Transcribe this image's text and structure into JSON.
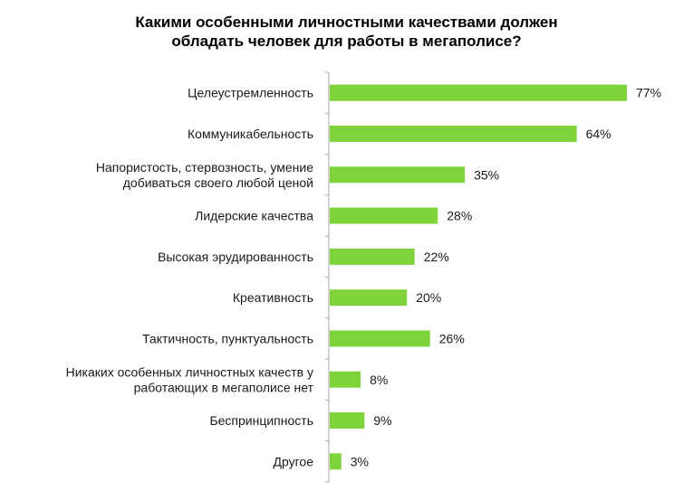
{
  "chart_data": {
    "type": "bar",
    "orientation": "horizontal",
    "title_lines": [
      "Какими особенными личностными качествами должен",
      "обладать человек для работы в мегаполисе?"
    ],
    "categories": [
      [
        "Целеустремленность"
      ],
      [
        "Коммуникабельность"
      ],
      [
        "Напористость, стервозность, умение",
        "добиваться своего любой ценой"
      ],
      [
        "Лидерские качества"
      ],
      [
        "Высокая эрудированность"
      ],
      [
        "Креативность"
      ],
      [
        "Тактичность, пунктуальность"
      ],
      [
        "Никаких особенных личностных качеств у",
        "работающих в мегаполисе нет"
      ],
      [
        "Беспринципность"
      ],
      [
        "Другое"
      ]
    ],
    "values": [
      77,
      64,
      35,
      28,
      22,
      20,
      26,
      8,
      9,
      3
    ],
    "value_labels": [
      "77%",
      "64%",
      "35%",
      "28%",
      "22%",
      "20%",
      "26%",
      "8%",
      "9%",
      "3%"
    ],
    "unit": "%",
    "xlim": [
      0,
      77
    ],
    "bar_color": "#7ed33a",
    "axis_color": "#a6a6a6",
    "grid": false,
    "legend": "none"
  }
}
